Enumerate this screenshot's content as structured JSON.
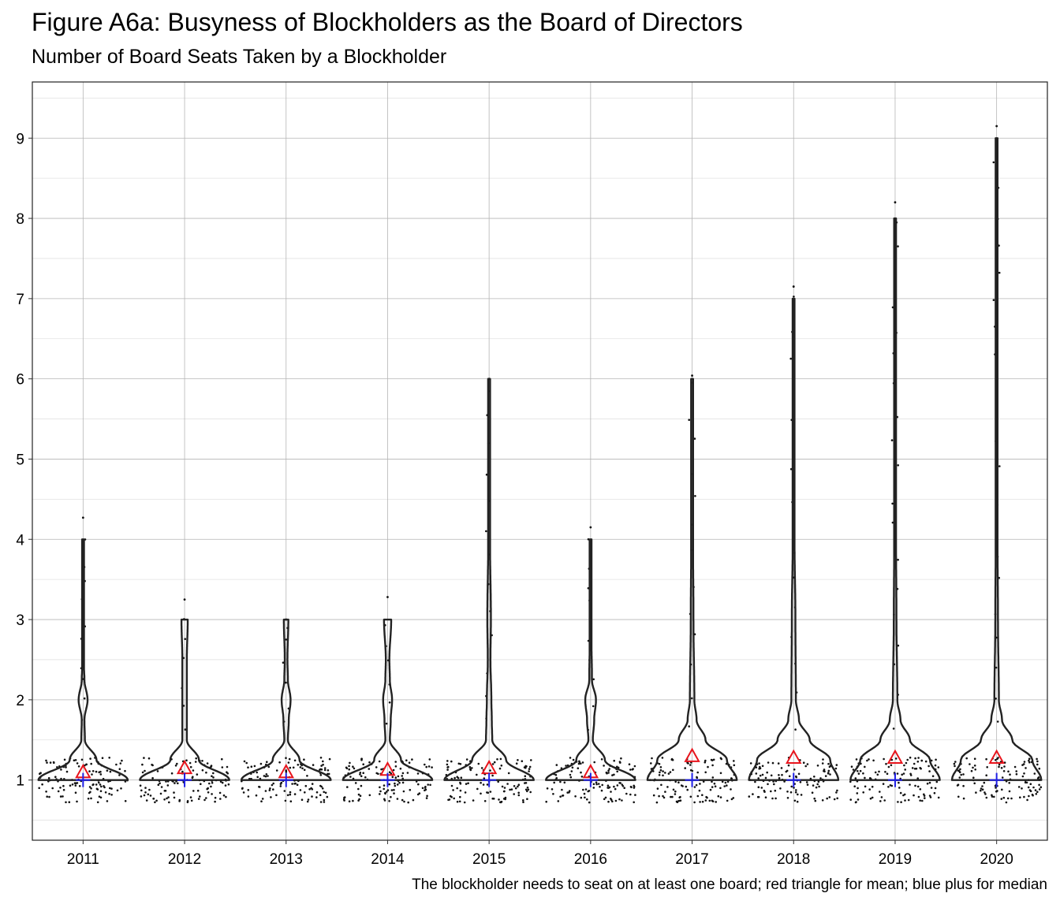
{
  "title": "Figure A6a: Busyness of Blockholders as the Board of Directors",
  "subtitle": "Number of Board Seats Taken by a Blockholder",
  "caption": "The blockholder needs to seat on at least one board; red triangle for mean; blue plus for median",
  "colors": {
    "violin": "#222222",
    "points": "#111111",
    "mean_marker": "#e8141c",
    "median_marker": "#1f1fe6",
    "grid_major": "#b5b5b5",
    "grid_minor": "#e2e2e2",
    "panel_border": "#222222"
  },
  "chart_data": {
    "type": "violin",
    "categories": [
      "2011",
      "2012",
      "2013",
      "2014",
      "2015",
      "2016",
      "2017",
      "2018",
      "2019",
      "2020"
    ],
    "y_ticks": [
      1,
      2,
      3,
      4,
      5,
      6,
      7,
      8,
      9
    ],
    "ylim": [
      0.25,
      9.7
    ],
    "grid": true,
    "mean_marker": "triangle",
    "median_marker": "plus",
    "series": [
      {
        "category": "2011",
        "mean": 1.1,
        "median": 1,
        "max": 4,
        "max_point": 4.27,
        "density": {
          "1": 1.0,
          "1.25": 0.3,
          "1.5": 0.04,
          "1.75": 0.03,
          "2": 0.1,
          "2.25": 0.03,
          "2.5": 0.01,
          "3": 0.02,
          "4": 0.02
        }
      },
      {
        "category": "2012",
        "mean": 1.15,
        "median": 1,
        "max": 3,
        "max_point": 3.25,
        "density": {
          "1": 1.0,
          "1.25": 0.32,
          "1.5": 0.05,
          "1.75": 0.05,
          "2": 0.05,
          "2.25": 0.05,
          "2.5": 0.05,
          "3": 0.07
        }
      },
      {
        "category": "2013",
        "mean": 1.1,
        "median": 1,
        "max": 3,
        "max_point": 3.0,
        "density": {
          "1": 1.0,
          "1.25": 0.3,
          "1.5": 0.04,
          "1.75": 0.06,
          "2": 0.1,
          "2.25": 0.04,
          "2.5": 0.03,
          "3": 0.05
        }
      },
      {
        "category": "2014",
        "mean": 1.13,
        "median": 1,
        "max": 3,
        "max_point": 3.28,
        "density": {
          "1": 1.0,
          "1.25": 0.3,
          "1.5": 0.05,
          "1.75": 0.07,
          "2": 0.1,
          "2.25": 0.05,
          "2.5": 0.04,
          "3": 0.08
        }
      },
      {
        "category": "2015",
        "mean": 1.15,
        "median": 1,
        "max": 6,
        "max_point": 6.0,
        "density": {
          "1": 1.0,
          "1.25": 0.38,
          "1.5": 0.07,
          "1.75": 0.06,
          "2": 0.05,
          "2.5": 0.03,
          "3": 0.04,
          "4": 0.02,
          "6": 0.01
        }
      },
      {
        "category": "2016",
        "mean": 1.1,
        "median": 1,
        "max": 4,
        "max_point": 4.15,
        "density": {
          "1": 1.0,
          "1.25": 0.32,
          "1.5": 0.05,
          "1.75": 0.08,
          "2": 0.12,
          "2.25": 0.03,
          "3": 0.01,
          "4": 0.01
        }
      },
      {
        "category": "2017",
        "mean": 1.3,
        "median": 1,
        "max": 6,
        "max_point": 6.04,
        "density": {
          "1": 1.0,
          "1.25": 0.78,
          "1.5": 0.3,
          "1.75": 0.1,
          "2": 0.05,
          "3": 0.03,
          "4": 0.02,
          "6": 0.01
        }
      },
      {
        "category": "2018",
        "mean": 1.28,
        "median": 1,
        "max": 7,
        "max_point": 7.15,
        "density": {
          "1": 1.0,
          "1.25": 0.82,
          "1.5": 0.36,
          "1.75": 0.12,
          "2": 0.05,
          "3": 0.04,
          "4": 0.02,
          "7": 0.01
        }
      },
      {
        "category": "2019",
        "mean": 1.28,
        "median": 1,
        "max": 8,
        "max_point": 8.2,
        "density": {
          "1": 1.0,
          "1.25": 0.78,
          "1.5": 0.33,
          "1.75": 0.12,
          "2": 0.05,
          "3": 0.03,
          "4": 0.02,
          "8": 0.01
        }
      },
      {
        "category": "2020",
        "mean": 1.28,
        "median": 1,
        "max": 9,
        "max_point": 9.15,
        "density": {
          "1": 1.0,
          "1.25": 0.8,
          "1.5": 0.35,
          "1.75": 0.12,
          "2": 0.05,
          "3": 0.03,
          "4": 0.02,
          "9": 0.01
        }
      }
    ]
  }
}
